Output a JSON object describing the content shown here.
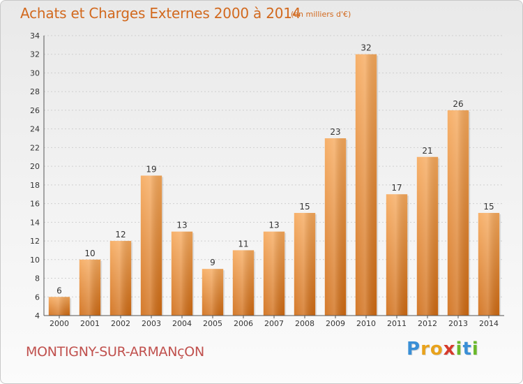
{
  "page": {
    "title": "Achats et Charges Externes 2000 à 2014",
    "subtitle": "(en milliers d'€)",
    "commune": "MONTIGNY-SUR-ARMANçON",
    "brand": "Proxiti"
  },
  "chart_data": {
    "type": "bar",
    "title": "Achats et Charges Externes 2000 à 2014",
    "subtitle": "(en milliers d'€)",
    "xlabel": "",
    "ylabel": "",
    "categories": [
      "2000",
      "2001",
      "2002",
      "2003",
      "2004",
      "2005",
      "2006",
      "2007",
      "2008",
      "2009",
      "2010",
      "2011",
      "2012",
      "2013",
      "2014"
    ],
    "values": [
      6,
      10,
      12,
      19,
      13,
      9,
      11,
      13,
      15,
      23,
      32,
      17,
      21,
      26,
      15
    ],
    "ylim": [
      4,
      34
    ],
    "yticks": [
      4,
      6,
      8,
      10,
      12,
      14,
      16,
      18,
      20,
      22,
      24,
      26,
      28,
      30,
      32,
      34
    ],
    "grid": true,
    "data_labels": true,
    "bar_color": "#f0a050"
  }
}
